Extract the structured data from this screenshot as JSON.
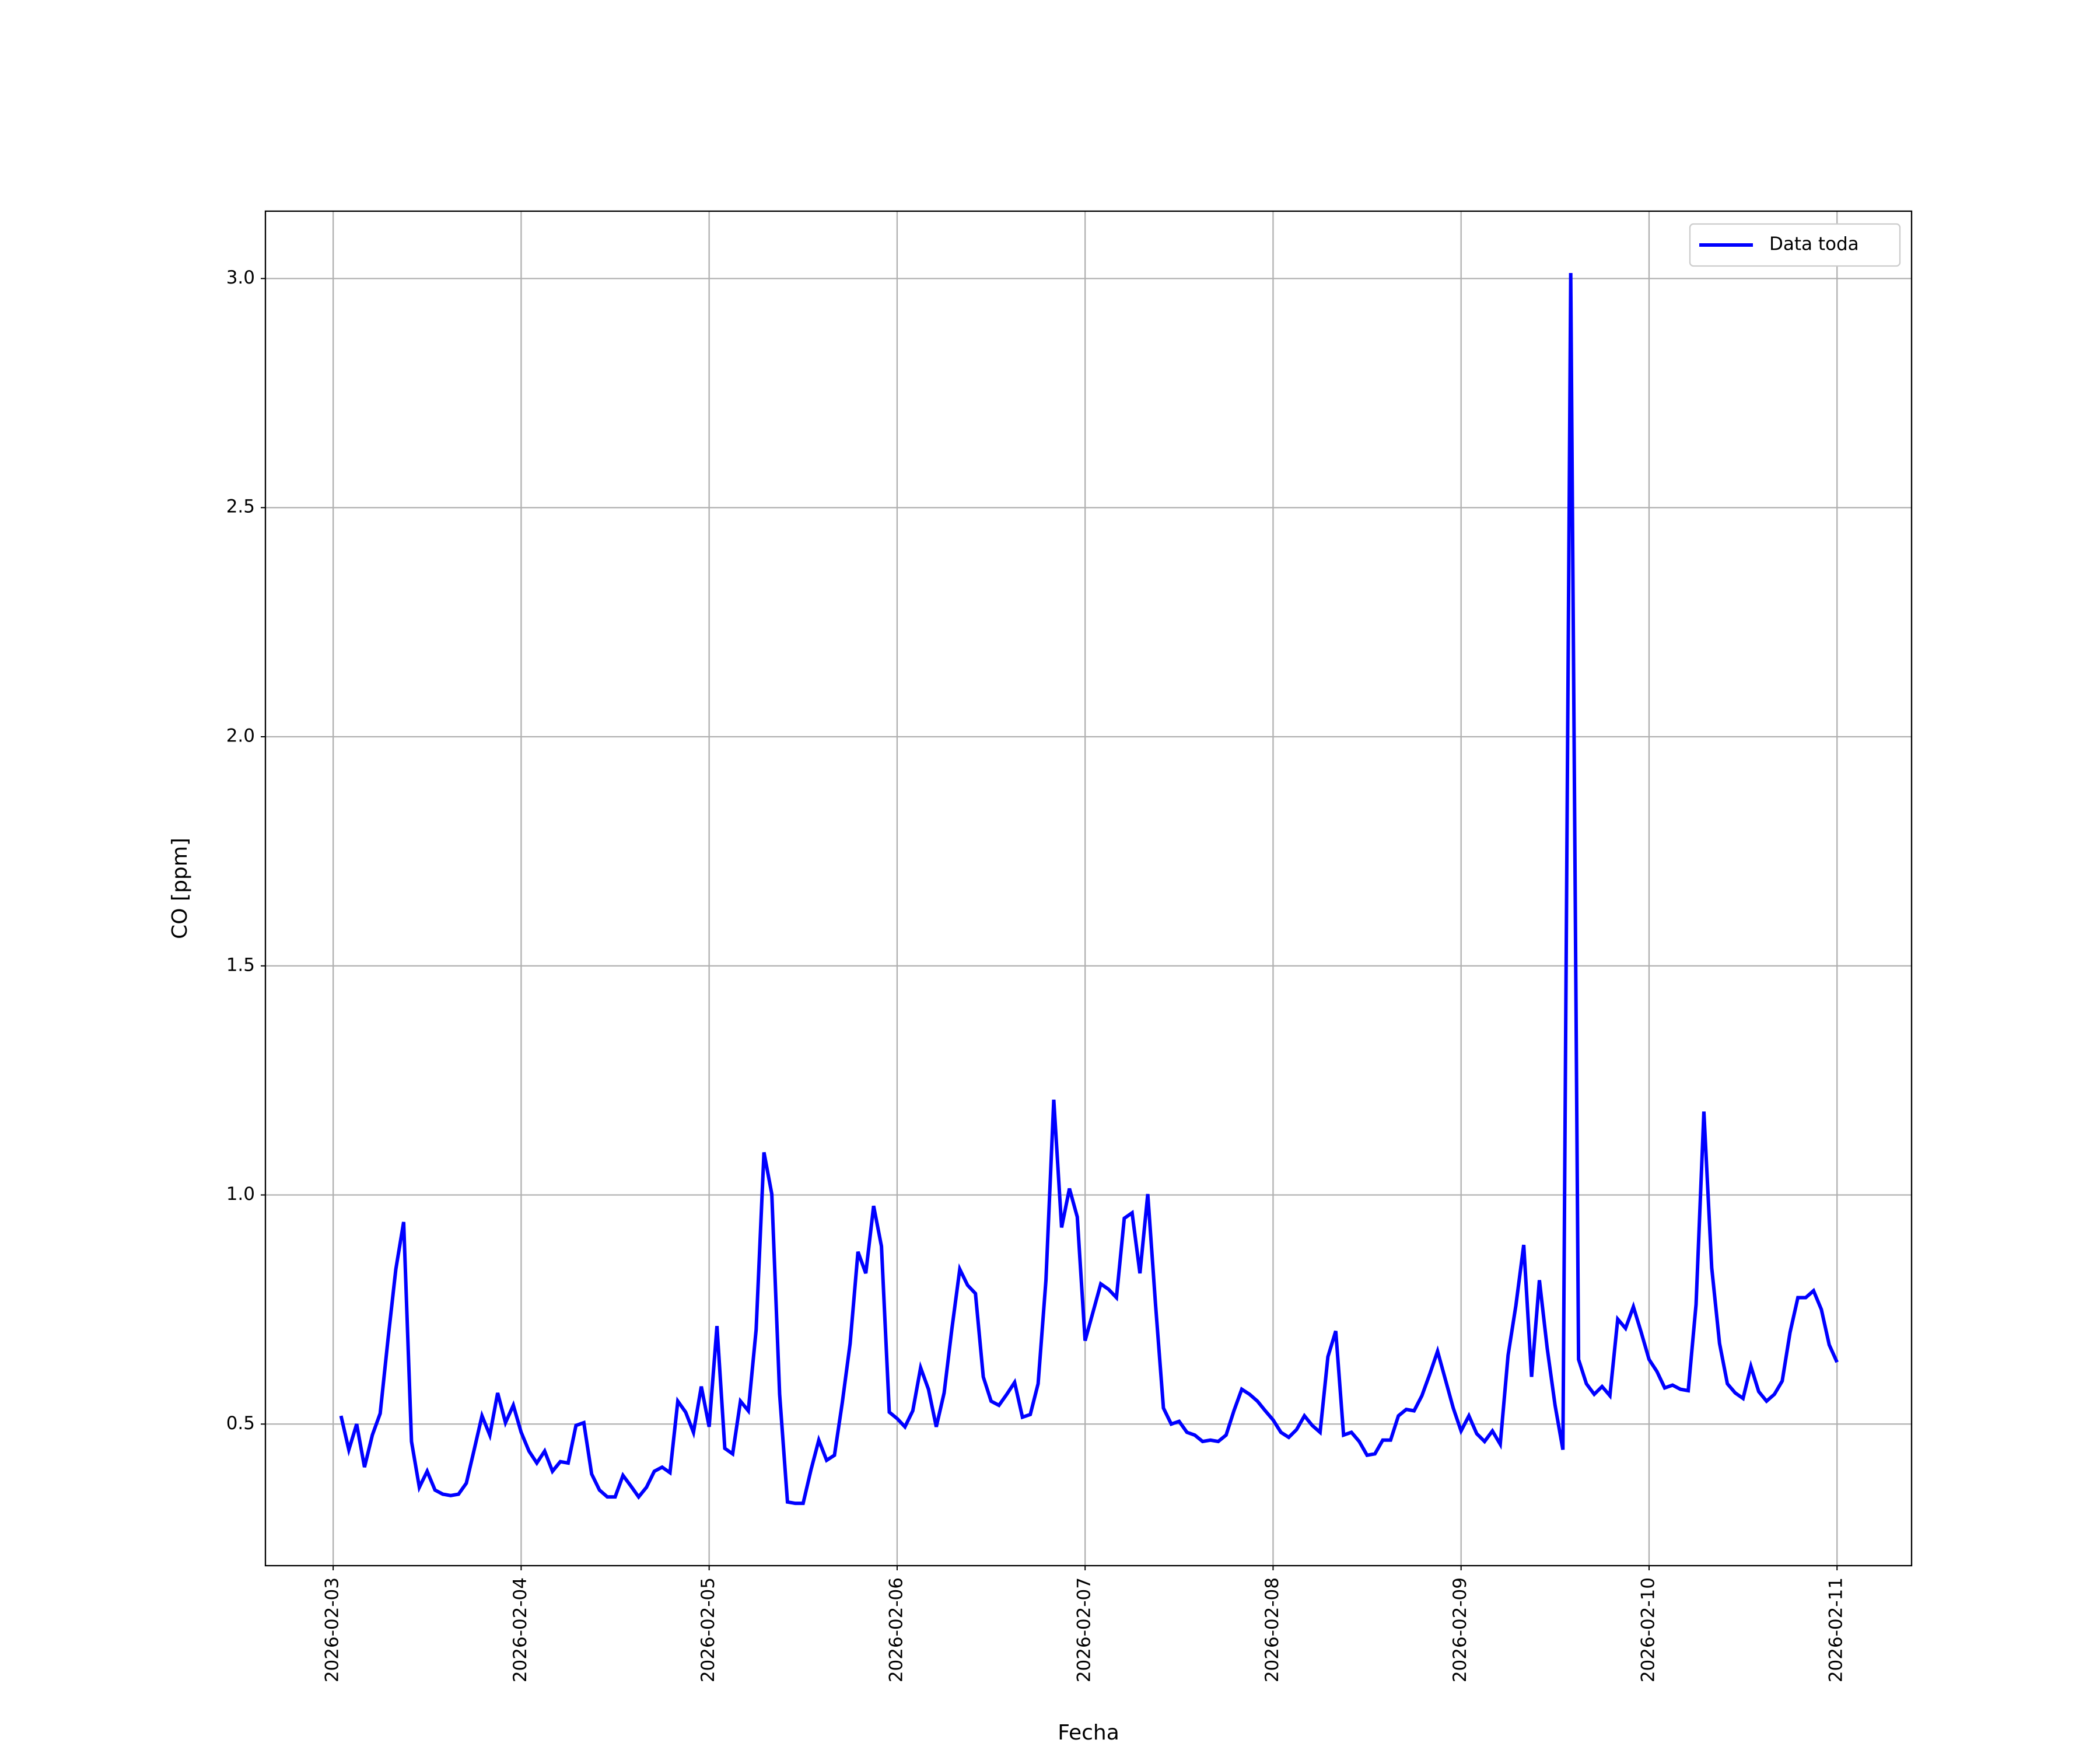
{
  "chart_data": {
    "type": "line",
    "xlabel": "Fecha",
    "ylabel": "CO [ppm]",
    "x": [
      "2026-02-03T01:00",
      "2026-02-03T02:00",
      "2026-02-03T03:00",
      "2026-02-03T04:00",
      "2026-02-03T05:00",
      "2026-02-03T06:00",
      "2026-02-03T07:00",
      "2026-02-03T08:00",
      "2026-02-03T09:00",
      "2026-02-03T10:00",
      "2026-02-03T11:00",
      "2026-02-03T12:00",
      "2026-02-03T13:00",
      "2026-02-03T14:00",
      "2026-02-03T15:00",
      "2026-02-03T16:00",
      "2026-02-03T17:00",
      "2026-02-03T18:00",
      "2026-02-03T19:00",
      "2026-02-03T20:00",
      "2026-02-03T21:00",
      "2026-02-03T22:00",
      "2026-02-03T23:00",
      "2026-02-04T00:00",
      "2026-02-04T01:00",
      "2026-02-04T02:00",
      "2026-02-04T03:00",
      "2026-02-04T04:00",
      "2026-02-04T05:00",
      "2026-02-04T06:00",
      "2026-02-04T07:00",
      "2026-02-04T08:00",
      "2026-02-04T09:00",
      "2026-02-04T10:00",
      "2026-02-04T11:00",
      "2026-02-04T12:00",
      "2026-02-04T13:00",
      "2026-02-04T14:00",
      "2026-02-04T15:00",
      "2026-02-04T16:00",
      "2026-02-04T17:00",
      "2026-02-04T18:00",
      "2026-02-04T19:00",
      "2026-02-04T20:00",
      "2026-02-04T21:00",
      "2026-02-04T22:00",
      "2026-02-04T23:00",
      "2026-02-05T00:00",
      "2026-02-05T01:00",
      "2026-02-05T02:00",
      "2026-02-05T03:00",
      "2026-02-05T04:00",
      "2026-02-05T05:00",
      "2026-02-05T06:00",
      "2026-02-05T07:00",
      "2026-02-05T08:00",
      "2026-02-05T09:00",
      "2026-02-05T10:00",
      "2026-02-05T11:00",
      "2026-02-05T12:00",
      "2026-02-05T13:00",
      "2026-02-05T14:00",
      "2026-02-05T15:00",
      "2026-02-05T16:00",
      "2026-02-05T17:00",
      "2026-02-05T18:00",
      "2026-02-05T19:00",
      "2026-02-05T20:00",
      "2026-02-05T21:00",
      "2026-02-05T22:00",
      "2026-02-05T23:00",
      "2026-02-06T00:00",
      "2026-02-06T01:00",
      "2026-02-06T02:00",
      "2026-02-06T03:00",
      "2026-02-06T04:00",
      "2026-02-06T05:00",
      "2026-02-06T06:00",
      "2026-02-06T07:00",
      "2026-02-06T08:00",
      "2026-02-06T09:00",
      "2026-02-06T10:00",
      "2026-02-06T11:00",
      "2026-02-06T12:00",
      "2026-02-06T13:00",
      "2026-02-06T14:00",
      "2026-02-06T15:00",
      "2026-02-06T16:00",
      "2026-02-06T17:00",
      "2026-02-06T18:00",
      "2026-02-06T19:00",
      "2026-02-06T20:00",
      "2026-02-06T21:00",
      "2026-02-06T22:00",
      "2026-02-06T23:00",
      "2026-02-07T00:00",
      "2026-02-07T01:00",
      "2026-02-07T02:00",
      "2026-02-07T03:00",
      "2026-02-07T04:00",
      "2026-02-07T05:00",
      "2026-02-07T06:00",
      "2026-02-07T07:00",
      "2026-02-07T08:00",
      "2026-02-07T09:00",
      "2026-02-07T10:00",
      "2026-02-07T11:00",
      "2026-02-07T12:00",
      "2026-02-07T13:00",
      "2026-02-07T14:00",
      "2026-02-07T15:00",
      "2026-02-07T16:00",
      "2026-02-07T17:00",
      "2026-02-07T18:00",
      "2026-02-07T19:00",
      "2026-02-07T20:00",
      "2026-02-07T21:00",
      "2026-02-07T22:00",
      "2026-02-07T23:00",
      "2026-02-08T00:00",
      "2026-02-08T01:00",
      "2026-02-08T02:00",
      "2026-02-08T03:00",
      "2026-02-08T04:00",
      "2026-02-08T05:00",
      "2026-02-08T06:00",
      "2026-02-08T07:00",
      "2026-02-08T08:00",
      "2026-02-08T09:00",
      "2026-02-08T10:00",
      "2026-02-08T11:00",
      "2026-02-08T12:00",
      "2026-02-08T13:00",
      "2026-02-08T14:00",
      "2026-02-08T15:00",
      "2026-02-08T16:00",
      "2026-02-08T17:00",
      "2026-02-08T18:00",
      "2026-02-08T19:00",
      "2026-02-08T20:00",
      "2026-02-08T21:00",
      "2026-02-08T22:00",
      "2026-02-08T23:00",
      "2026-02-09T00:00",
      "2026-02-09T01:00",
      "2026-02-09T02:00",
      "2026-02-09T03:00",
      "2026-02-09T04:00",
      "2026-02-09T05:00",
      "2026-02-09T06:00",
      "2026-02-09T07:00",
      "2026-02-09T08:00",
      "2026-02-09T09:00",
      "2026-02-09T10:00",
      "2026-02-09T11:00",
      "2026-02-09T12:00",
      "2026-02-09T13:00",
      "2026-02-09T14:00",
      "2026-02-09T15:00",
      "2026-02-09T16:00",
      "2026-02-09T17:00",
      "2026-02-09T18:00",
      "2026-02-09T19:00",
      "2026-02-09T20:00",
      "2026-02-09T21:00",
      "2026-02-09T22:00",
      "2026-02-09T23:00",
      "2026-02-10T00:00",
      "2026-02-10T01:00",
      "2026-02-10T02:00",
      "2026-02-10T03:00",
      "2026-02-10T04:00",
      "2026-02-10T05:00",
      "2026-02-10T06:00",
      "2026-02-10T07:00",
      "2026-02-10T08:00",
      "2026-02-10T09:00",
      "2026-02-10T10:00",
      "2026-02-10T11:00",
      "2026-02-10T12:00",
      "2026-02-10T13:00",
      "2026-02-10T14:00",
      "2026-02-10T15:00",
      "2026-02-10T16:00",
      "2026-02-10T17:00",
      "2026-02-10T18:00",
      "2026-02-10T19:00",
      "2026-02-10T20:00",
      "2026-02-10T21:00",
      "2026-02-10T22:00",
      "2026-02-10T23:00",
      "2026-02-11T00:00"
    ],
    "series": [
      {
        "name": "Data toda",
        "color": "#0000ff",
        "values": [
          0.518,
          0.444,
          0.5,
          0.406,
          0.476,
          0.523,
          0.685,
          0.838,
          0.941,
          0.462,
          0.362,
          0.397,
          0.356,
          0.347,
          0.344,
          0.347,
          0.371,
          0.444,
          0.518,
          0.476,
          0.568,
          0.503,
          0.541,
          0.482,
          0.441,
          0.415,
          0.441,
          0.397,
          0.418,
          0.415,
          0.497,
          0.503,
          0.391,
          0.356,
          0.341,
          0.341,
          0.388,
          0.365,
          0.341,
          0.362,
          0.397,
          0.406,
          0.394,
          0.55,
          0.526,
          0.482,
          0.582,
          0.494,
          0.714,
          0.447,
          0.435,
          0.55,
          0.529,
          0.706,
          1.093,
          1.002,
          0.565,
          0.33,
          0.327,
          0.327,
          0.4,
          0.465,
          0.421,
          0.432,
          0.547,
          0.676,
          0.876,
          0.829,
          0.976,
          0.888,
          0.526,
          0.512,
          0.494,
          0.529,
          0.623,
          0.576,
          0.494,
          0.568,
          0.709,
          0.838,
          0.803,
          0.785,
          0.603,
          0.55,
          0.541,
          0.565,
          0.591,
          0.515,
          0.521,
          0.588,
          0.814,
          1.208,
          0.929,
          1.014,
          0.952,
          0.682,
          0.744,
          0.806,
          0.794,
          0.776,
          0.949,
          0.961,
          0.829,
          1.002,
          0.759,
          0.535,
          0.5,
          0.506,
          0.482,
          0.476,
          0.462,
          0.465,
          0.462,
          0.476,
          0.529,
          0.576,
          0.565,
          0.55,
          0.529,
          0.509,
          0.482,
          0.471,
          0.488,
          0.518,
          0.497,
          0.482,
          0.647,
          0.703,
          0.476,
          0.482,
          0.462,
          0.432,
          0.435,
          0.465,
          0.465,
          0.518,
          0.532,
          0.529,
          0.562,
          0.609,
          0.659,
          0.597,
          0.535,
          0.485,
          0.518,
          0.479,
          0.462,
          0.485,
          0.456,
          0.65,
          0.759,
          0.891,
          0.603,
          0.814,
          0.665,
          0.541,
          0.444,
          3.012,
          0.641,
          0.588,
          0.565,
          0.582,
          0.562,
          0.729,
          0.709,
          0.756,
          0.7,
          0.641,
          0.615,
          0.579,
          0.585,
          0.576,
          0.573,
          0.761,
          1.182,
          0.841,
          0.676,
          0.588,
          0.568,
          0.556,
          0.626,
          0.571,
          0.55,
          0.565,
          0.594,
          0.7,
          0.776,
          0.776,
          0.791,
          0.75,
          0.673,
          0.635
        ]
      }
    ],
    "xlim": [
      "2026-02-02T15:21",
      "2026-02-11T09:31"
    ],
    "xticks": [
      "2026-02-03",
      "2026-02-04",
      "2026-02-05",
      "2026-02-06",
      "2026-02-07",
      "2026-02-08",
      "2026-02-09",
      "2026-02-10",
      "2026-02-11"
    ],
    "ylim": [
      0.191,
      3.147
    ],
    "yticks": [
      0.5,
      {
        "value": 1,
        "label": "1.0"
      },
      1.5,
      {
        "value": 2,
        "label": "2.0"
      },
      2.5,
      {
        "value": 3,
        "label": "3.0"
      }
    ],
    "grid": true,
    "legend": "upper right"
  }
}
